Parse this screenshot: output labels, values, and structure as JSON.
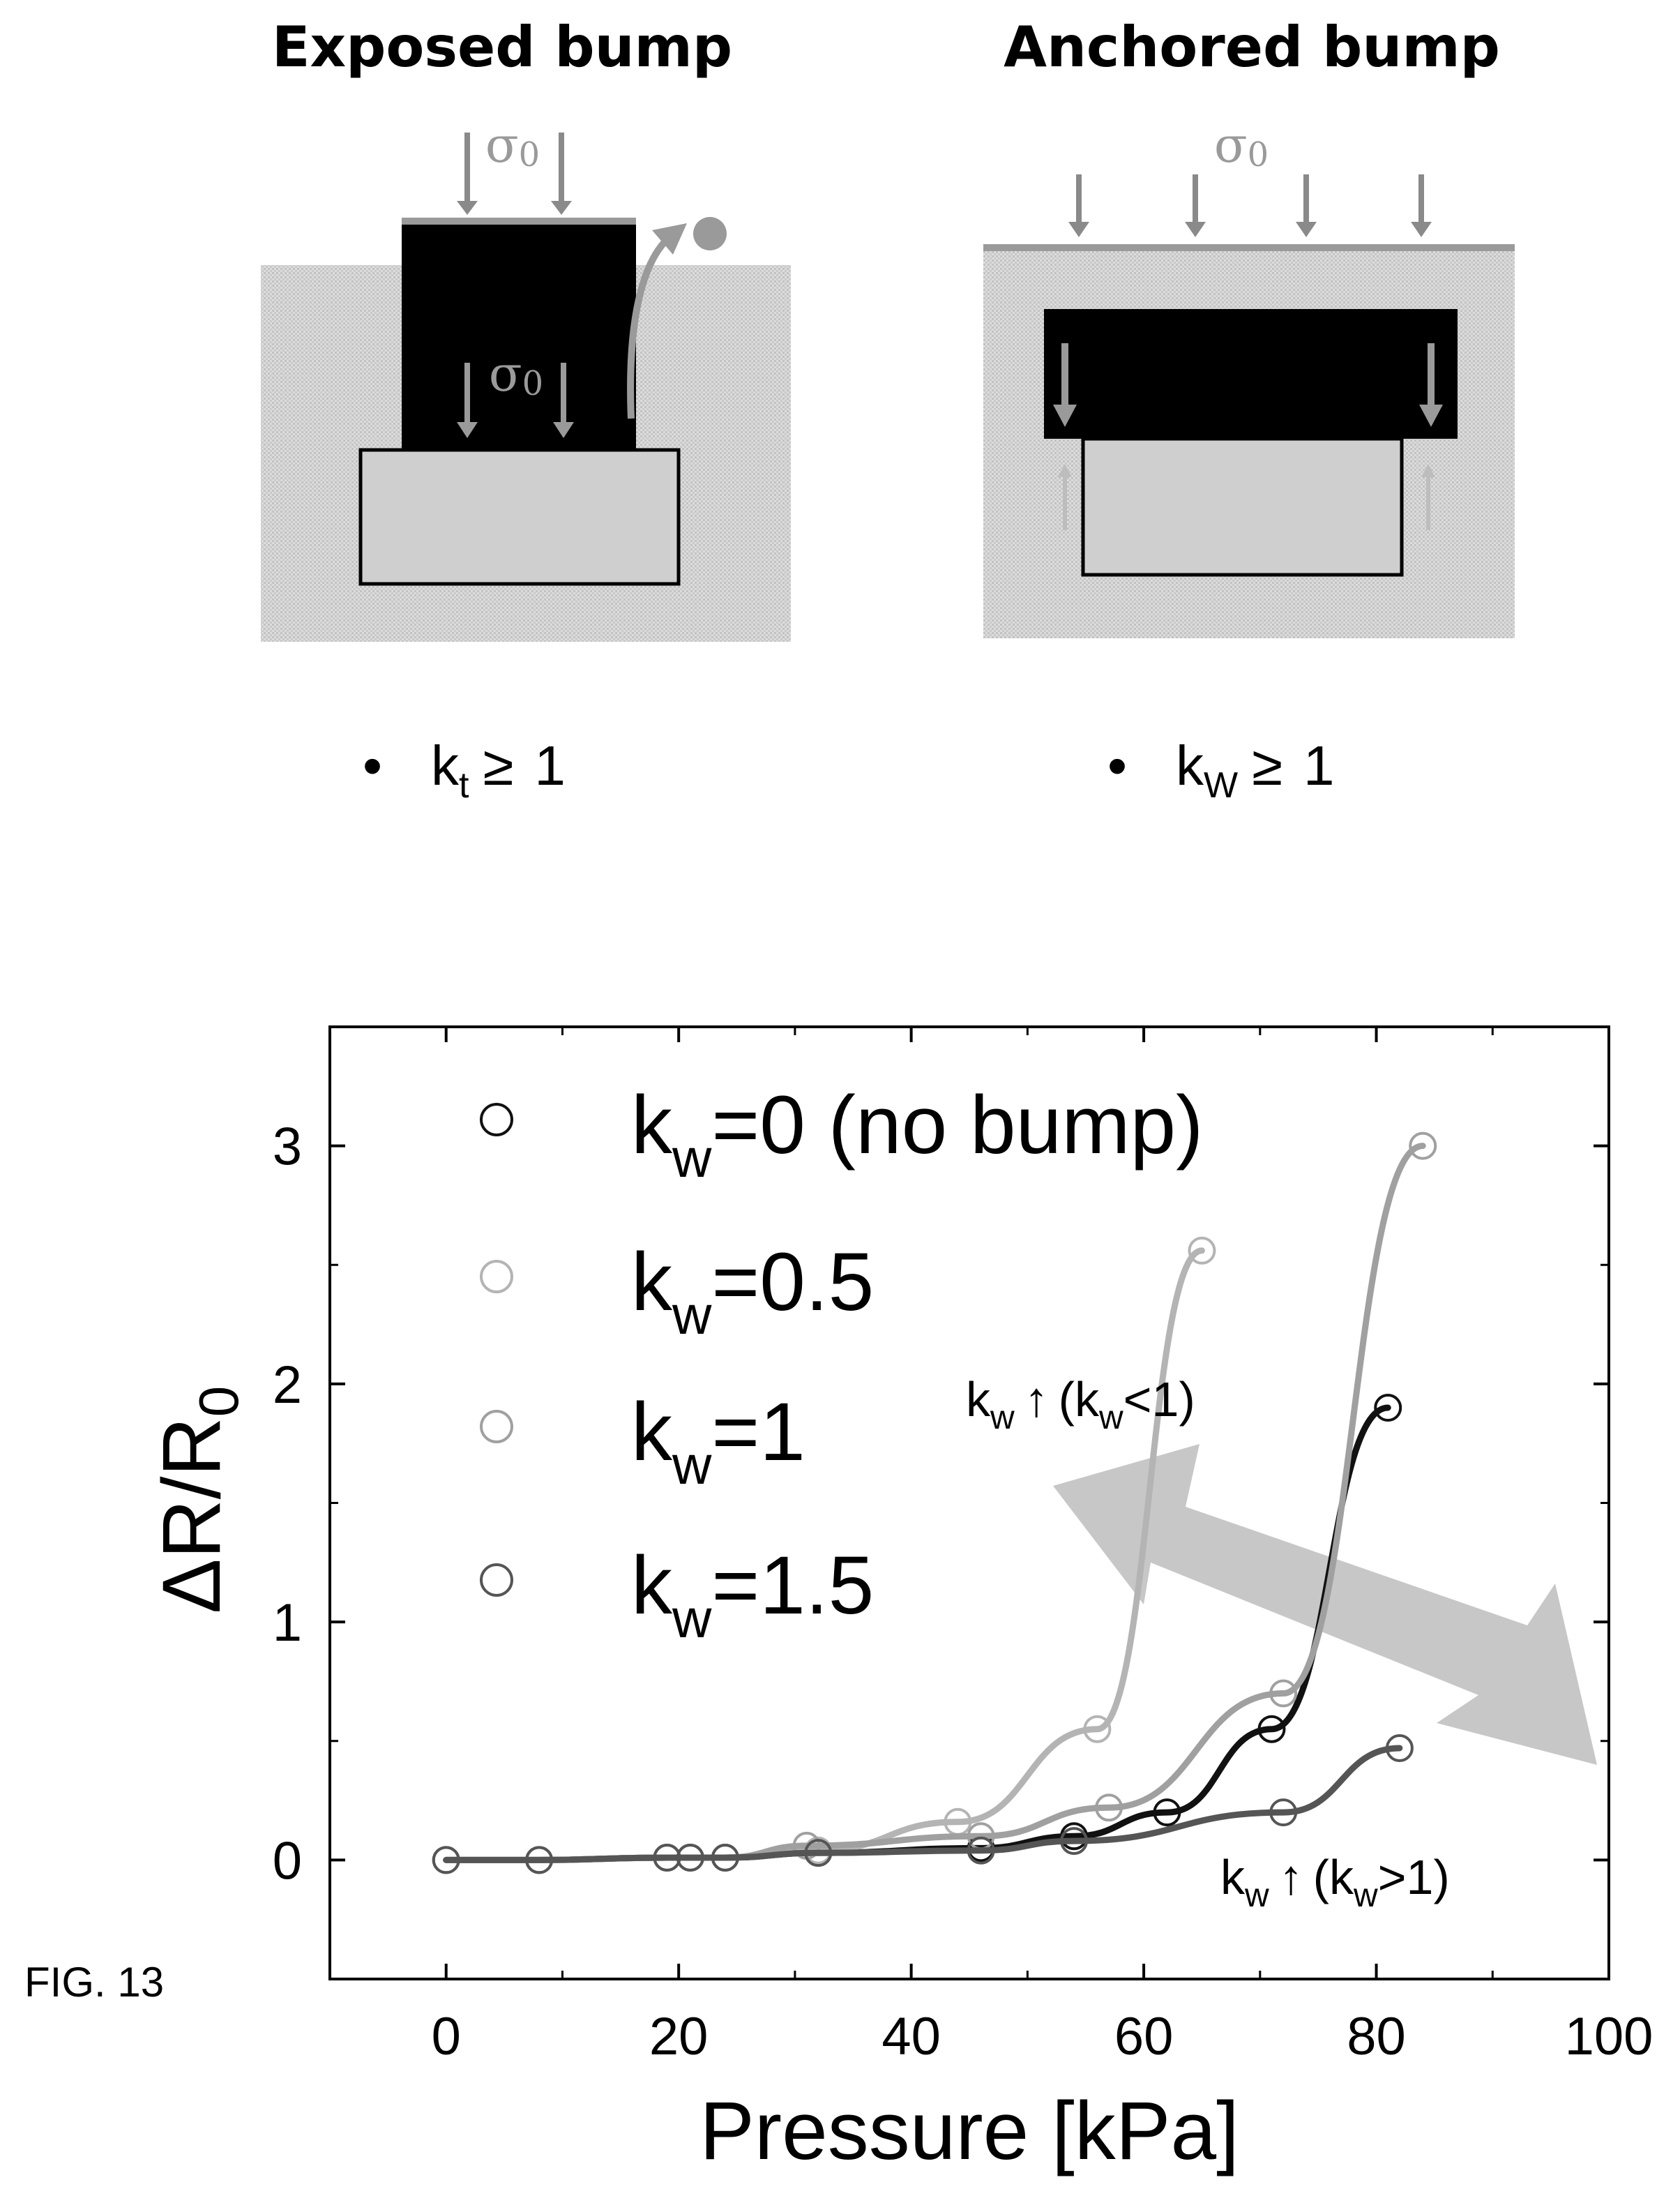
{
  "figure_label": "FIG. 13",
  "colors": {
    "ink": "#000000",
    "gray_text": "#9a9a9a",
    "substrate_fill": "#d2d2d2",
    "bump_fill": "#000000",
    "pad_fill": "#cfcfcf",
    "arrow_fill": "#bdbdbd",
    "series_0": "#111111",
    "series_0_5": "#b4b4b4",
    "series_1": "#a0a0a0",
    "series_1_5": "#555555"
  },
  "panels": {
    "exposed": {
      "title": "Exposed bump",
      "stress_top": "σ",
      "stress_top_sub": "0",
      "stress_inner": "σ",
      "stress_inner_sub": "0",
      "condition": {
        "bullet": "•",
        "k": "k",
        "sub": "t",
        "rel": "≥",
        "rhs": "1"
      }
    },
    "anchored": {
      "title": "Anchored bump",
      "stress_top": "σ",
      "stress_top_sub": "0",
      "condition": {
        "bullet": "•",
        "k": "k",
        "sub": "W",
        "rel": "≥",
        "rhs": "1"
      }
    }
  },
  "chart_data": {
    "type": "line",
    "xlabel": "Pressure [kPa]",
    "ylabel_main": "ΔR/R",
    "ylabel_sub": "0",
    "xlim": [
      -10,
      100
    ],
    "ylim": [
      -0.5,
      3.5
    ],
    "xticks": [
      "0",
      "20",
      "40",
      "60",
      "80",
      "100"
    ],
    "yticks": [
      "0",
      "1",
      "2",
      "3"
    ],
    "legend_position": "top-left",
    "series": [
      {
        "k": "k",
        "sub": "w",
        "rest": "=0 (no bump)",
        "color": "#111111",
        "x": [
          0,
          8,
          19,
          21,
          24,
          32,
          46,
          54,
          62,
          71,
          81
        ],
        "y": [
          0.0,
          0.0,
          0.01,
          0.01,
          0.01,
          0.03,
          0.05,
          0.1,
          0.2,
          0.55,
          1.9
        ]
      },
      {
        "k": "k",
        "sub": "w",
        "rest": "=0.5",
        "color": "#b4b4b4",
        "x": [
          0,
          8,
          19,
          21,
          24,
          32,
          44,
          56,
          65
        ],
        "y": [
          0.0,
          0.0,
          0.01,
          0.01,
          0.01,
          0.04,
          0.16,
          0.55,
          2.56
        ]
      },
      {
        "k": "k",
        "sub": "w",
        "rest": "=1",
        "color": "#a0a0a0",
        "x": [
          0,
          8,
          19,
          21,
          24,
          31,
          46,
          57,
          72,
          84
        ],
        "y": [
          0.0,
          0.0,
          0.01,
          0.01,
          0.01,
          0.06,
          0.1,
          0.22,
          0.7,
          3.0
        ]
      },
      {
        "k": "k",
        "sub": "w",
        "rest": "=1.5",
        "color": "#555555",
        "x": [
          0,
          8,
          19,
          21,
          24,
          32,
          46,
          54,
          72,
          82
        ],
        "y": [
          0.0,
          0.0,
          0.01,
          0.01,
          0.01,
          0.03,
          0.04,
          0.08,
          0.2,
          0.47
        ]
      }
    ],
    "annotations": {
      "upper": {
        "k": "k",
        "sub": "w",
        "arrow": "↑",
        "open": "(k",
        "sub2": "w",
        "close": "<1)"
      },
      "lower": {
        "k": "k",
        "sub": "w",
        "arrow": "↑",
        "open": "(k",
        "sub2": "w",
        "close": ">1)"
      }
    }
  }
}
